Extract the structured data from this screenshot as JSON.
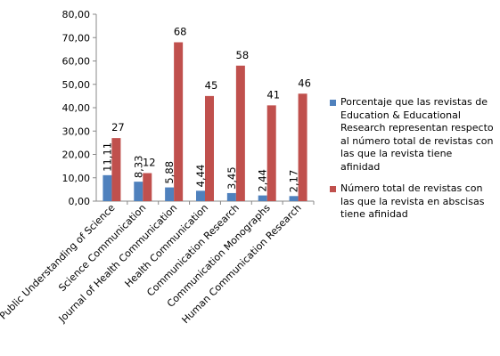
{
  "chart_data": {
    "type": "bar",
    "categories": [
      "Public Understanding of Science",
      "Science Communication",
      "Journal of Health Communication",
      "Health Communication",
      "Communication Research",
      "Communication Monographs",
      "Human Communication Research"
    ],
    "series": [
      {
        "name": "Porcentaje que las revistas de Education & Educational Research representan respecto al número total de revistas con las que la revista tiene afinidad",
        "color": "#4f81bd",
        "values": [
          11.11,
          8.33,
          5.88,
          4.44,
          3.45,
          2.44,
          2.17
        ],
        "labels": [
          "11,11",
          "8,33",
          "5,88",
          "4,44",
          "3,45",
          "2,44",
          "2,17"
        ]
      },
      {
        "name": "Número total de revistas con las que la revista en abscisas tiene afinidad",
        "color": "#c0504d",
        "values": [
          27,
          12,
          68,
          45,
          58,
          41,
          46
        ],
        "labels": [
          "27",
          "12",
          "68",
          "45",
          "58",
          "41",
          "46"
        ]
      }
    ],
    "ylim": [
      0,
      80
    ],
    "yticks": [
      0,
      10,
      20,
      30,
      40,
      50,
      60,
      70,
      80
    ],
    "ytick_labels": [
      "0,00",
      "10,00",
      "20,00",
      "30,00",
      "40,00",
      "50,00",
      "60,00",
      "70,00",
      "80,00"
    ],
    "grid": false,
    "legend_position": "right"
  }
}
